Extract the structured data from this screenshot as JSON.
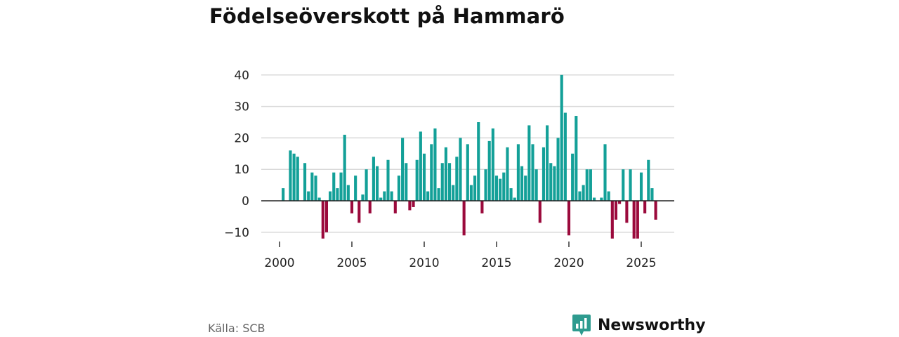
{
  "colors": {
    "positive": "#13a098",
    "negative": "#9b0a3c",
    "grid": "#d9d9d9",
    "zero": "#222222",
    "brand": "#2e9b8f"
  },
  "header": {
    "title": "Födelseöverskott på Hammarö"
  },
  "footer": {
    "source": "Källa: SCB",
    "brand": "Newsworthy"
  },
  "chart_data": {
    "type": "bar",
    "title": "Födelseöverskott på Hammarö",
    "xlabel": "",
    "ylabel": "",
    "ylim": [
      -14,
      40
    ],
    "yticks": [
      -10,
      0,
      10,
      20,
      30,
      40
    ],
    "ytick_labels": [
      "−10",
      "0",
      "10",
      "20",
      "30",
      "40"
    ],
    "xticks": [
      "2000",
      "2005",
      "2010",
      "2015",
      "2020",
      "2025"
    ],
    "start_year": 2000,
    "periods_per_year": 4,
    "x_range": [
      1999.4,
      2027.0
    ],
    "values": [
      0,
      4,
      0,
      16,
      15,
      14,
      0,
      12,
      3,
      9,
      8,
      1,
      -12,
      -10,
      3,
      9,
      4,
      9,
      21,
      5,
      -4,
      8,
      -7,
      2,
      10,
      -4,
      14,
      11,
      1,
      3,
      13,
      3,
      -4,
      8,
      20,
      12,
      -3,
      -2,
      13,
      22,
      15,
      3,
      18,
      23,
      4,
      12,
      17,
      12,
      5,
      14,
      20,
      -11,
      18,
      5,
      8,
      25,
      -4,
      10,
      19,
      23,
      8,
      7,
      9,
      17,
      4,
      1,
      18,
      11,
      8,
      24,
      18,
      10,
      -7,
      17,
      24,
      12,
      11,
      20,
      40,
      28,
      -11,
      15,
      27,
      3,
      5,
      10,
      10,
      1,
      0,
      1,
      18,
      3,
      -12,
      -6,
      -1,
      10,
      -7,
      10,
      -12,
      -12,
      9,
      -4,
      13,
      4,
      -6
    ]
  }
}
